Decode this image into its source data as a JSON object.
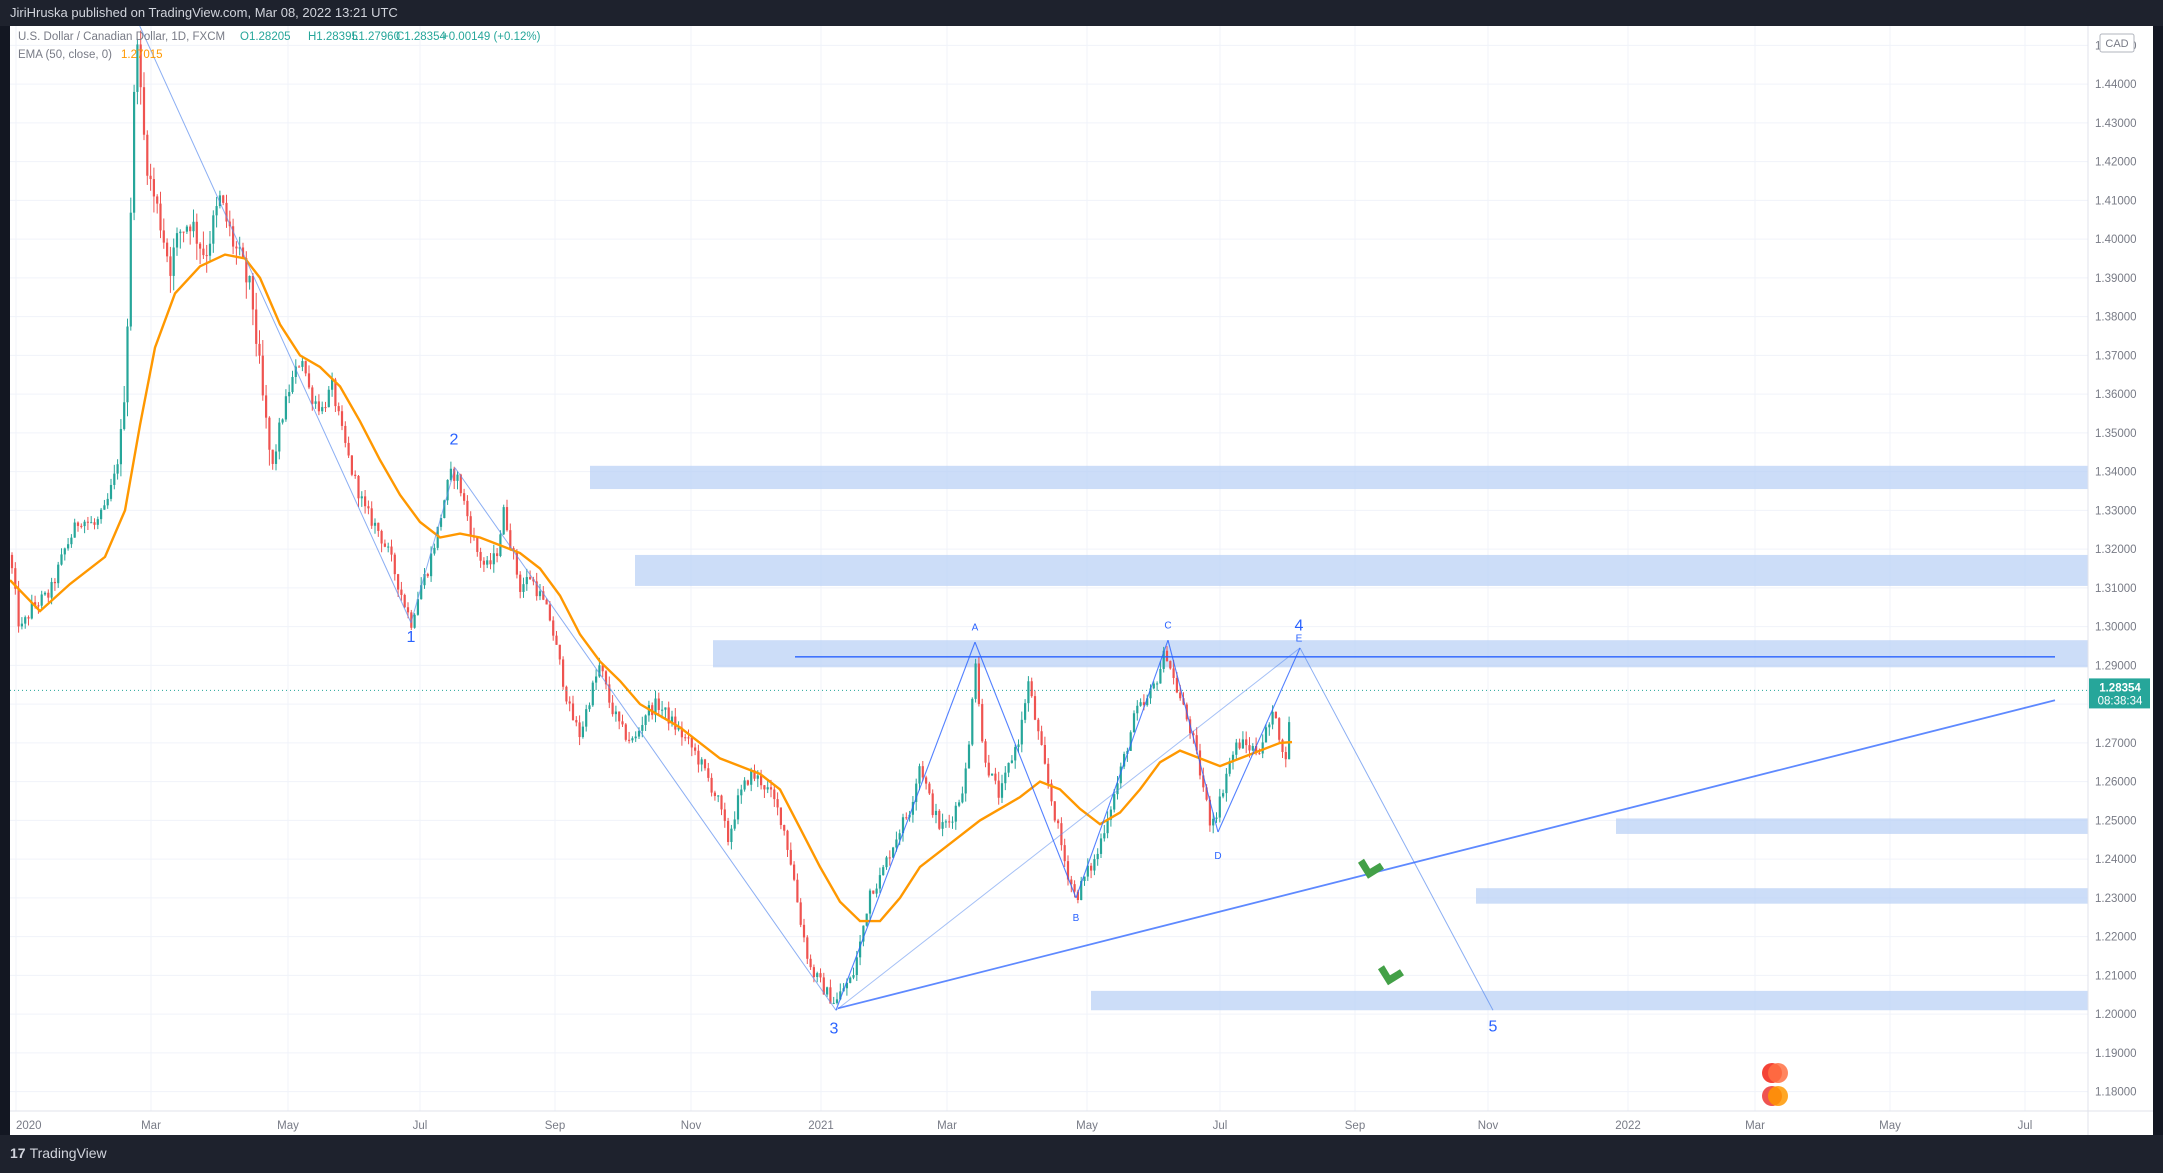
{
  "header": {
    "published_text": "JiriHruska published on TradingView.com, Mar 08, 2022 13:21 UTC"
  },
  "legend": {
    "symbol": "U.S. Dollar / Canadian Dollar, 1D, FXCM",
    "open": "O1.28205",
    "high": "H1.28395",
    "low": "L1.27960",
    "close": "C1.28354",
    "change": "+0.00149 (+0.12%)",
    "ema_label": "EMA (50, close, 0)",
    "ema_value": "1.27015"
  },
  "price_axis": {
    "currency": "CAD",
    "last_price": "1.28354",
    "countdown": "08:38:34"
  },
  "footer": {
    "logo_text": "TradingView"
  },
  "colors": {
    "up_candle": "#26a69a",
    "down_candle": "#ef5350",
    "ema": "#ff9800",
    "pattern_lines": "#2962ff",
    "zones": "#bbd1f5",
    "arrows": "#43a047"
  },
  "chart_data": {
    "type": "candlestick",
    "title": "U.S. Dollar / Canadian Dollar, 1D, FXCM",
    "y_ticks": [
      1.18,
      1.19,
      1.2,
      1.21,
      1.22,
      1.23,
      1.24,
      1.25,
      1.26,
      1.27,
      1.28,
      1.29,
      1.3,
      1.31,
      1.32,
      1.33,
      1.34,
      1.35,
      1.36,
      1.37,
      1.38,
      1.39,
      1.4,
      1.41,
      1.42,
      1.43,
      1.44,
      1.45
    ],
    "ylim": [
      1.175,
      1.455
    ],
    "x_labels": [
      "2020",
      "Mar",
      "May",
      "Jul",
      "Sep",
      "Nov",
      "2021",
      "Mar",
      "May",
      "Jul",
      "Sep",
      "Nov",
      "2022",
      "Mar",
      "May",
      "Jul"
    ],
    "ema_period": 50,
    "price_path": [
      [
        0,
        1.3185
      ],
      [
        10,
        1.2985
      ],
      [
        22,
        1.305
      ],
      [
        40,
        1.3085
      ],
      [
        55,
        1.32
      ],
      [
        70,
        1.328
      ],
      [
        85,
        1.326
      ],
      [
        95,
        1.33
      ],
      [
        105,
        1.339
      ],
      [
        112,
        1.35
      ],
      [
        117,
        1.375
      ],
      [
        121,
        1.41
      ],
      [
        124,
        1.435
      ],
      [
        127,
        1.456
      ],
      [
        132,
        1.43
      ],
      [
        140,
        1.415
      ],
      [
        150,
        1.405
      ],
      [
        160,
        1.393
      ],
      [
        170,
        1.402
      ],
      [
        180,
        1.405
      ],
      [
        195,
        1.396
      ],
      [
        210,
        1.41
      ],
      [
        222,
        1.4
      ],
      [
        232,
        1.393
      ],
      [
        242,
        1.385
      ],
      [
        252,
        1.36
      ],
      [
        262,
        1.34
      ],
      [
        270,
        1.352
      ],
      [
        280,
        1.362
      ],
      [
        292,
        1.37
      ],
      [
        300,
        1.36
      ],
      [
        312,
        1.356
      ],
      [
        322,
        1.362
      ],
      [
        332,
        1.35
      ],
      [
        342,
        1.34
      ],
      [
        355,
        1.33
      ],
      [
        368,
        1.325
      ],
      [
        380,
        1.318
      ],
      [
        392,
        1.308
      ],
      [
        401,
        1.301
      ],
      [
        410,
        1.31
      ],
      [
        418,
        1.315
      ],
      [
        428,
        1.325
      ],
      [
        436,
        1.335
      ],
      [
        442,
        1.34
      ],
      [
        448,
        1.338
      ],
      [
        456,
        1.33
      ],
      [
        466,
        1.32
      ],
      [
        476,
        1.315
      ],
      [
        486,
        1.318
      ],
      [
        494,
        1.33
      ],
      [
        502,
        1.32
      ],
      [
        510,
        1.31
      ],
      [
        520,
        1.313
      ],
      [
        530,
        1.308
      ],
      [
        540,
        1.302
      ],
      [
        550,
        1.29
      ],
      [
        560,
        1.278
      ],
      [
        570,
        1.272
      ],
      [
        580,
        1.282
      ],
      [
        590,
        1.29
      ],
      [
        600,
        1.28
      ],
      [
        612,
        1.273
      ],
      [
        624,
        1.27
      ],
      [
        636,
        1.278
      ],
      [
        648,
        1.28
      ],
      [
        660,
        1.276
      ],
      [
        672,
        1.272
      ],
      [
        684,
        1.268
      ],
      [
        696,
        1.262
      ],
      [
        708,
        1.255
      ],
      [
        718,
        1.245
      ],
      [
        728,
        1.255
      ],
      [
        740,
        1.262
      ],
      [
        752,
        1.26
      ],
      [
        762,
        1.256
      ],
      [
        772,
        1.25
      ],
      [
        782,
        1.238
      ],
      [
        790,
        1.225
      ],
      [
        800,
        1.212
      ],
      [
        810,
        1.208
      ],
      [
        818,
        1.205
      ],
      [
        826,
        1.203
      ],
      [
        834,
        1.207
      ],
      [
        842,
        1.209
      ],
      [
        850,
        1.218
      ],
      [
        860,
        1.232
      ],
      [
        870,
        1.235
      ],
      [
        880,
        1.242
      ],
      [
        890,
        1.248
      ],
      [
        900,
        1.253
      ],
      [
        910,
        1.265
      ],
      [
        920,
        1.255
      ],
      [
        930,
        1.248
      ],
      [
        940,
        1.25
      ],
      [
        950,
        1.256
      ],
      [
        958,
        1.265
      ],
      [
        965,
        1.294
      ],
      [
        972,
        1.27
      ],
      [
        980,
        1.262
      ],
      [
        990,
        1.256
      ],
      [
        1000,
        1.265
      ],
      [
        1010,
        1.272
      ],
      [
        1018,
        1.286
      ],
      [
        1026,
        1.275
      ],
      [
        1036,
        1.262
      ],
      [
        1046,
        1.25
      ],
      [
        1056,
        1.238
      ],
      [
        1066,
        1.23
      ],
      [
        1076,
        1.236
      ],
      [
        1086,
        1.24
      ],
      [
        1096,
        1.25
      ],
      [
        1106,
        1.258
      ],
      [
        1116,
        1.268
      ],
      [
        1126,
        1.278
      ],
      [
        1136,
        1.28
      ],
      [
        1146,
        1.286
      ],
      [
        1156,
        1.294
      ],
      [
        1164,
        1.286
      ],
      [
        1172,
        1.28
      ],
      [
        1182,
        1.272
      ],
      [
        1192,
        1.26
      ],
      [
        1200,
        1.25
      ],
      [
        1208,
        1.253
      ],
      [
        1218,
        1.264
      ],
      [
        1228,
        1.27
      ],
      [
        1238,
        1.269
      ],
      [
        1248,
        1.268
      ],
      [
        1258,
        1.274
      ],
      [
        1266,
        1.278
      ],
      [
        1274,
        1.264
      ],
      [
        1282,
        1.28
      ]
    ],
    "ema_path": [
      [
        0,
        1.312
      ],
      [
        30,
        1.304
      ],
      [
        60,
        1.311
      ],
      [
        95,
        1.318
      ],
      [
        115,
        1.33
      ],
      [
        130,
        1.352
      ],
      [
        145,
        1.372
      ],
      [
        165,
        1.386
      ],
      [
        190,
        1.393
      ],
      [
        215,
        1.396
      ],
      [
        235,
        1.395
      ],
      [
        250,
        1.39
      ],
      [
        270,
        1.378
      ],
      [
        290,
        1.37
      ],
      [
        310,
        1.367
      ],
      [
        330,
        1.362
      ],
      [
        350,
        1.353
      ],
      [
        370,
        1.343
      ],
      [
        390,
        1.334
      ],
      [
        410,
        1.327
      ],
      [
        430,
        1.323
      ],
      [
        450,
        1.324
      ],
      [
        470,
        1.323
      ],
      [
        490,
        1.321
      ],
      [
        510,
        1.319
      ],
      [
        530,
        1.315
      ],
      [
        550,
        1.308
      ],
      [
        570,
        1.298
      ],
      [
        590,
        1.291
      ],
      [
        610,
        1.286
      ],
      [
        630,
        1.28
      ],
      [
        650,
        1.277
      ],
      [
        670,
        1.274
      ],
      [
        690,
        1.27
      ],
      [
        710,
        1.266
      ],
      [
        730,
        1.264
      ],
      [
        750,
        1.262
      ],
      [
        770,
        1.258
      ],
      [
        790,
        1.248
      ],
      [
        810,
        1.238
      ],
      [
        830,
        1.229
      ],
      [
        850,
        1.224
      ],
      [
        870,
        1.224
      ],
      [
        890,
        1.23
      ],
      [
        910,
        1.238
      ],
      [
        930,
        1.242
      ],
      [
        950,
        1.246
      ],
      [
        970,
        1.25
      ],
      [
        990,
        1.253
      ],
      [
        1010,
        1.256
      ],
      [
        1030,
        1.26
      ],
      [
        1050,
        1.258
      ],
      [
        1070,
        1.253
      ],
      [
        1090,
        1.249
      ],
      [
        1110,
        1.252
      ],
      [
        1130,
        1.258
      ],
      [
        1150,
        1.265
      ],
      [
        1170,
        1.268
      ],
      [
        1190,
        1.266
      ],
      [
        1210,
        1.264
      ],
      [
        1230,
        1.266
      ],
      [
        1250,
        1.268
      ],
      [
        1270,
        1.27
      ],
      [
        1282,
        1.2702
      ]
    ],
    "zones": [
      {
        "x1": 580,
        "x2": 2078,
        "y1": 1.3355,
        "y2": 1.3415
      },
      {
        "x1": 625,
        "x2": 2078,
        "y1": 1.3105,
        "y2": 1.3185
      },
      {
        "x1": 703,
        "x2": 2078,
        "y1": 1.2895,
        "y2": 1.2965
      },
      {
        "x1": 1606,
        "x2": 2078,
        "y1": 1.2465,
        "y2": 1.2505
      },
      {
        "x1": 1466,
        "x2": 2078,
        "y1": 1.2285,
        "y2": 1.2325
      },
      {
        "x1": 1081,
        "x2": 2078,
        "y1": 1.201,
        "y2": 1.206
      }
    ],
    "wave_labels": [
      "1",
      "2",
      "3",
      "4",
      "5"
    ],
    "triangle_labels": [
      "A",
      "B",
      "C",
      "D",
      "E"
    ],
    "horizontal_line_level": 1.2922
  }
}
